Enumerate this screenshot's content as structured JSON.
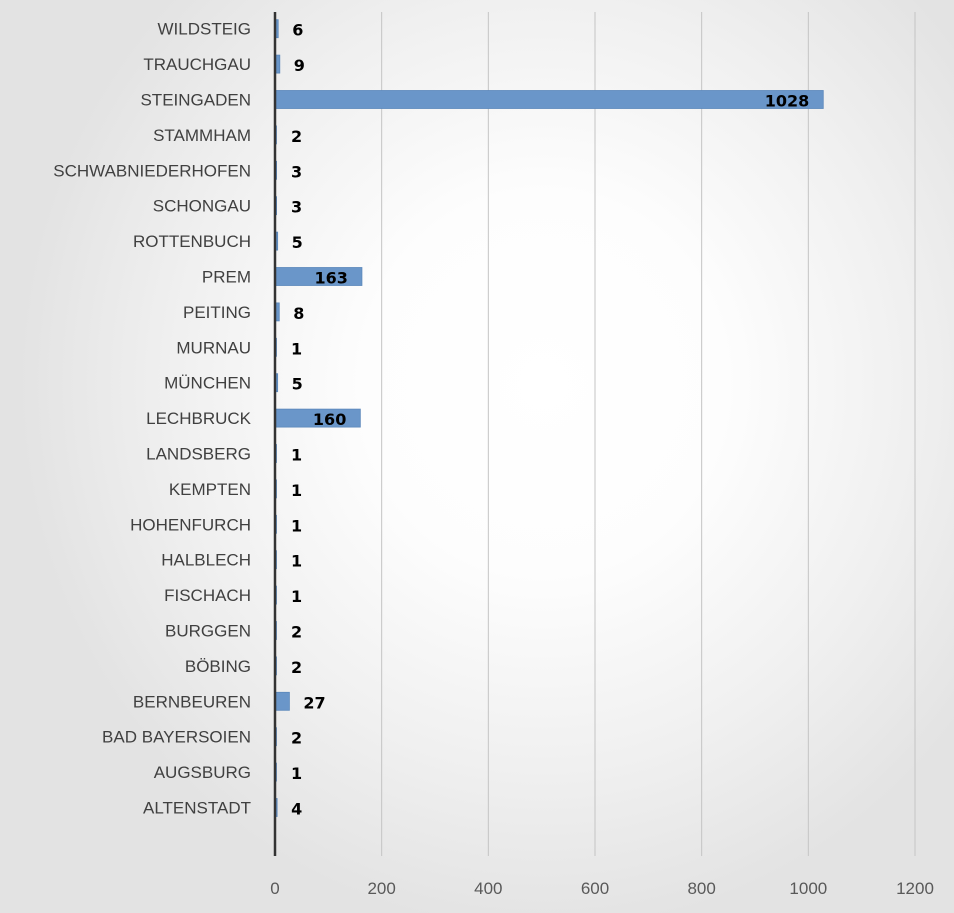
{
  "chart_data": {
    "type": "bar",
    "orientation": "horizontal",
    "categories": [
      "WILDSTEIG",
      "TRAUCHGAU",
      "STEINGADEN",
      "STAMMHAM",
      "SCHWABNIEDERHOFEN",
      "SCHONGAU",
      "ROTTENBUCH",
      "PREM",
      "PEITING",
      "MURNAU",
      "MÜNCHEN",
      "LECHBRUCK",
      "LANDSBERG",
      "KEMPTEN",
      "HOHENFURCH",
      "HALBLECH",
      "FISCHACH",
      "BURGGEN",
      "BÖBING",
      "BERNBEUREN",
      "BAD BAYERSOIEN",
      "AUGSBURG",
      "ALTENSTADT"
    ],
    "values": [
      6,
      9,
      1028,
      2,
      3,
      3,
      5,
      163,
      8,
      1,
      5,
      160,
      1,
      1,
      1,
      1,
      1,
      2,
      2,
      27,
      2,
      1,
      4
    ],
    "data_labels": [
      "6",
      "9",
      "1028",
      "2",
      "3",
      "3",
      "5",
      "163",
      "8",
      "1",
      "5",
      "160",
      "1",
      "1",
      "1",
      "1",
      "1",
      "2",
      "2",
      "27",
      "2",
      "1",
      "4"
    ],
    "xlim": [
      0,
      1200
    ],
    "x_ticks": [
      "0",
      "200",
      "400",
      "600",
      "800",
      "1000",
      "1200"
    ],
    "tick_values": [
      0,
      200,
      400,
      600,
      800,
      1000,
      1200
    ],
    "title": "",
    "xlabel": "",
    "ylabel": "",
    "grid": "vertical",
    "legend": "none",
    "bar_color": "#6a96c9",
    "bar_edge_color": "#5b87bb",
    "grid_color": "#c4c4c4",
    "axis_color": "#333333"
  }
}
